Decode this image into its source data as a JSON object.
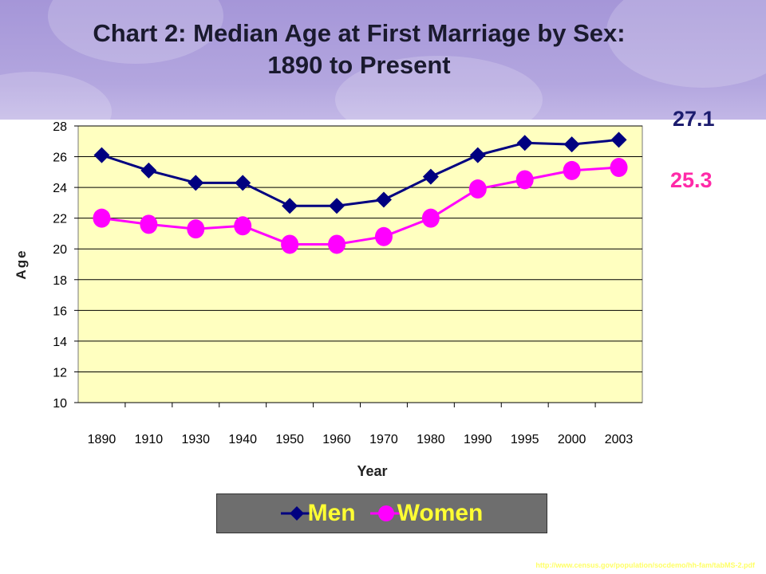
{
  "title_lines": [
    "Chart 2: Median Age at First Marriage by Sex:",
    "1890 to Present"
  ],
  "men_latest": "27.1",
  "women_latest": "25.3",
  "source_url": "http://www.census.gov/population/socdemo/hh-fam/tabMS-2.pdf",
  "colors": {
    "men": "#000080",
    "women": "#ff00ff",
    "plot_bg": "#ffffc0",
    "legend_text": "#ffff33"
  },
  "chart_data": {
    "type": "line",
    "title": "Chart 2: Median Age at First Marriage by Sex: 1890 to Present",
    "xlabel": "Year",
    "ylabel": "Age",
    "categories": [
      "1890",
      "1910",
      "1930",
      "1940",
      "1950",
      "1960",
      "1970",
      "1980",
      "1990",
      "1995",
      "2000",
      "2003"
    ],
    "ylim": [
      10,
      28
    ],
    "yticks": [
      10,
      12,
      14,
      16,
      18,
      20,
      22,
      24,
      26,
      28
    ],
    "grid": true,
    "legend_position": "bottom",
    "series": [
      {
        "name": "Men",
        "marker": "diamond",
        "values": [
          26.1,
          25.1,
          24.3,
          24.3,
          22.8,
          22.8,
          23.2,
          24.7,
          26.1,
          26.9,
          26.8,
          27.1
        ]
      },
      {
        "name": "Women",
        "marker": "circle",
        "values": [
          22.0,
          21.6,
          21.3,
          21.5,
          20.3,
          20.3,
          20.8,
          22.0,
          23.9,
          24.5,
          25.1,
          25.3
        ]
      }
    ]
  }
}
